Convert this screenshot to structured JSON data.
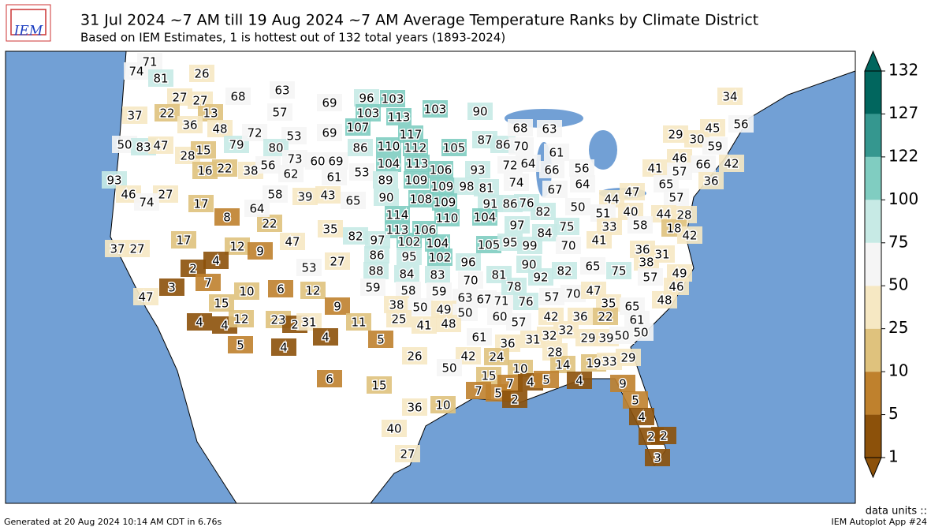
{
  "header": {
    "logo": "IEM",
    "title": "31 Jul 2024 ~7 AM till 19 Aug 2024 ~7 AM Average Temperature Ranks by Climate District",
    "subtitle": "Based on IEM Estimates, 1 is hottest out of 132 total years (1893-2024)"
  },
  "colorbar": {
    "ticks": [
      1,
      5,
      10,
      25,
      50,
      75,
      100,
      122,
      127,
      132
    ],
    "colors": [
      "#8c510a",
      "#bf812d",
      "#dfc27d",
      "#f6e8c3",
      "#f5f5f5",
      "#c7eae5",
      "#80cdc1",
      "#35978f",
      "#01665e"
    ]
  },
  "district_ranks": [
    71,
    74,
    81,
    26,
    27,
    27,
    37,
    22,
    13,
    36,
    48,
    79,
    50,
    83,
    47,
    28,
    15,
    16,
    22,
    38,
    93,
    46,
    27,
    74,
    17,
    8,
    22,
    64,
    17,
    12,
    9,
    4,
    2,
    7,
    37,
    27,
    47,
    3,
    10,
    15,
    6,
    12,
    9,
    4,
    4,
    12,
    23,
    2,
    31,
    4,
    5,
    4,
    11,
    5,
    6,
    68,
    63,
    57,
    69,
    72,
    53,
    69,
    80,
    73,
    60,
    69,
    56,
    62,
    61,
    58,
    39,
    43,
    65,
    47,
    35,
    82,
    53,
    27,
    96,
    103,
    103,
    113,
    103,
    107,
    117,
    86,
    110,
    112,
    105,
    104,
    113,
    53,
    89,
    109,
    106,
    93,
    90,
    108,
    109,
    98,
    81,
    114,
    109,
    91,
    86,
    76,
    110,
    104,
    113,
    106,
    97,
    102,
    104,
    97,
    86,
    95,
    102,
    105,
    95,
    99,
    96,
    88,
    84,
    83,
    90,
    92,
    81,
    70,
    90,
    87,
    86,
    70,
    68,
    63,
    61,
    72,
    64,
    66,
    56,
    74,
    67,
    64,
    82,
    50,
    75,
    84,
    70,
    82,
    65,
    75,
    29,
    45,
    56,
    34,
    30,
    59,
    46,
    66,
    42,
    41,
    57,
    36,
    65,
    57,
    47,
    44,
    51,
    40,
    44,
    28,
    33,
    58,
    18,
    42,
    41,
    36,
    31,
    38,
    49,
    57,
    46,
    48,
    35,
    65,
    61,
    22,
    36,
    32,
    42,
    29,
    39,
    50,
    50,
    32,
    28,
    14,
    19,
    33,
    29,
    59,
    58,
    59,
    63,
    67,
    71,
    78,
    76,
    57,
    70,
    47,
    38,
    50,
    49,
    50,
    25,
    41,
    48,
    60,
    57,
    61,
    36,
    31,
    42,
    24,
    26,
    50,
    15,
    10,
    15,
    7,
    5,
    7,
    4,
    2,
    5,
    4,
    9,
    5,
    4,
    2,
    2,
    3,
    36,
    10,
    40,
    27
  ],
  "footer": {
    "data_units": "data units ::",
    "generated": "Generated at 20 Aug 2024 10:14 AM CDT in 6.76s",
    "app": "IEM Autoplot App #24"
  }
}
